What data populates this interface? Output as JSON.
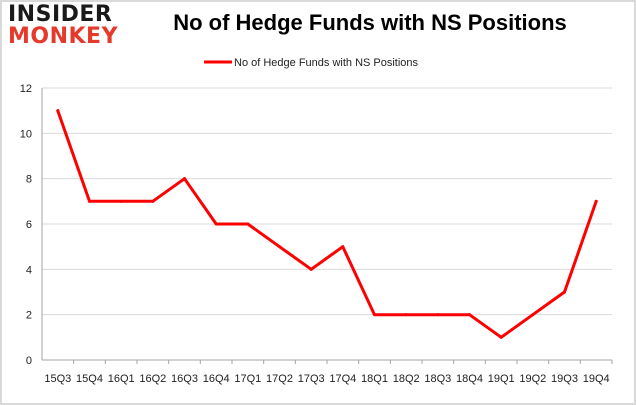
{
  "logo": {
    "line1": "INSIDER",
    "line2": "MONKEY"
  },
  "chart_data": {
    "type": "line",
    "title": "No of Hedge Funds with NS Positions",
    "xlabel": "",
    "ylabel": "",
    "categories": [
      "15Q3",
      "15Q4",
      "16Q1",
      "16Q2",
      "16Q3",
      "16Q4",
      "17Q1",
      "17Q2",
      "17Q3",
      "17Q4",
      "18Q1",
      "18Q2",
      "18Q3",
      "18Q4",
      "19Q1",
      "19Q2",
      "19Q3",
      "19Q4"
    ],
    "series": [
      {
        "name": "No of Hedge Funds with NS Positions",
        "color": "#ff0000",
        "values": [
          11,
          7,
          7,
          7,
          8,
          6,
          6,
          5,
          4,
          5,
          2,
          2,
          2,
          2,
          1,
          2,
          3,
          7
        ]
      }
    ],
    "ylim": [
      0,
      12
    ],
    "yticks": [
      0,
      2,
      4,
      6,
      8,
      10,
      12
    ],
    "grid": true,
    "legend": "top-center"
  }
}
